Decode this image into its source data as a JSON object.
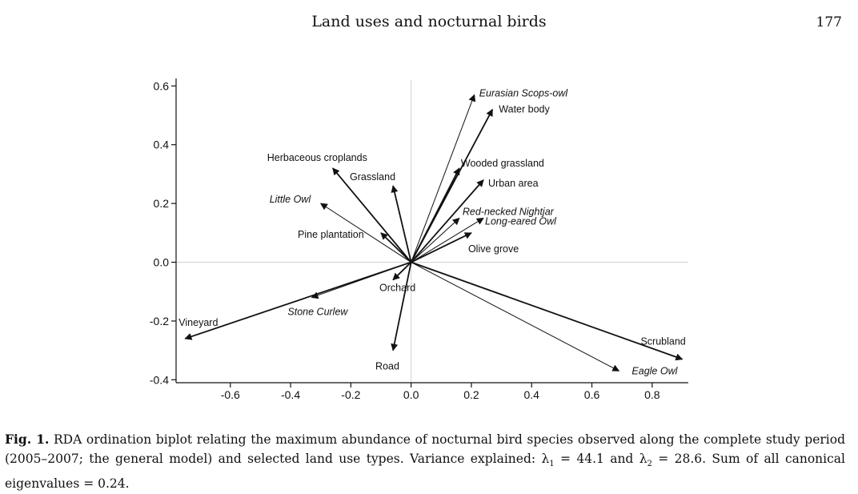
{
  "header": {
    "running_title": "Land uses and nocturnal birds",
    "page_number": "177"
  },
  "chart_data": {
    "type": "scatter",
    "subtype": "biplot-vectors",
    "xlim": [
      -0.78,
      0.92
    ],
    "ylim": [
      -0.41,
      0.62
    ],
    "x_ticks": [
      -0.6,
      -0.4,
      -0.2,
      0.0,
      0.2,
      0.4,
      0.6,
      0.8
    ],
    "x_tick_labels": [
      "-0.6",
      "-0.4",
      "-0.2",
      "0.0",
      "0.2",
      "0.4",
      "0.6",
      "0.8"
    ],
    "y_ticks": [
      0.6,
      0.4,
      0.2,
      0.0,
      -0.2,
      -0.4
    ],
    "y_tick_labels": [
      "0.6",
      "0.4",
      "0.2",
      "0.0",
      "-0.2",
      "-0.4"
    ],
    "reference_lines": [
      0,
      0
    ],
    "vectors": [
      {
        "label": "Eurasian Scops-owl",
        "kind": "species",
        "x": 0.21,
        "y": 0.57
      },
      {
        "label": "Water body",
        "kind": "land_use",
        "x": 0.27,
        "y": 0.52
      },
      {
        "label": "Wooded grassland",
        "kind": "land_use",
        "x": 0.16,
        "y": 0.32
      },
      {
        "label": "Urban area",
        "kind": "land_use",
        "x": 0.24,
        "y": 0.28
      },
      {
        "label": "Red-necked Nightjar",
        "kind": "species",
        "x": 0.16,
        "y": 0.15
      },
      {
        "label": "Long-eared Owl",
        "kind": "species",
        "x": 0.24,
        "y": 0.15
      },
      {
        "label": "Olive grove",
        "kind": "land_use",
        "x": 0.2,
        "y": 0.1
      },
      {
        "label": "Herbaceous croplands",
        "kind": "land_use",
        "x": -0.26,
        "y": 0.32
      },
      {
        "label": "Grassland",
        "kind": "land_use",
        "x": -0.06,
        "y": 0.26
      },
      {
        "label": "Little Owl",
        "kind": "species",
        "x": -0.3,
        "y": 0.2
      },
      {
        "label": "Pine plantation",
        "kind": "land_use",
        "x": -0.1,
        "y": 0.1
      },
      {
        "label": "Orchard",
        "kind": "land_use",
        "x": -0.06,
        "y": -0.06
      },
      {
        "label": "Stone Curlew",
        "kind": "species",
        "x": -0.33,
        "y": -0.12
      },
      {
        "label": "Vineyard",
        "kind": "land_use",
        "x": -0.75,
        "y": -0.26
      },
      {
        "label": "Road",
        "kind": "land_use",
        "x": -0.06,
        "y": -0.3
      },
      {
        "label": "Scrubland",
        "kind": "land_use",
        "x": 0.9,
        "y": -0.33
      },
      {
        "label": "Eagle Owl",
        "kind": "species",
        "x": 0.69,
        "y": -0.37
      }
    ]
  },
  "caption": {
    "fig_label": "Fig. 1.",
    "text_1": " RDA ordination biplot relating the maximum abundance of nocturnal bird species observed along the complete study period (2005–2007; the general model) and selected land use types. Variance explained: λ",
    "sub_1": "1",
    "text_2": " = 44.1 and λ",
    "sub_2": "2",
    "text_3": " = 28.6. Sum of all canonical eigenvalues = 0.24."
  }
}
